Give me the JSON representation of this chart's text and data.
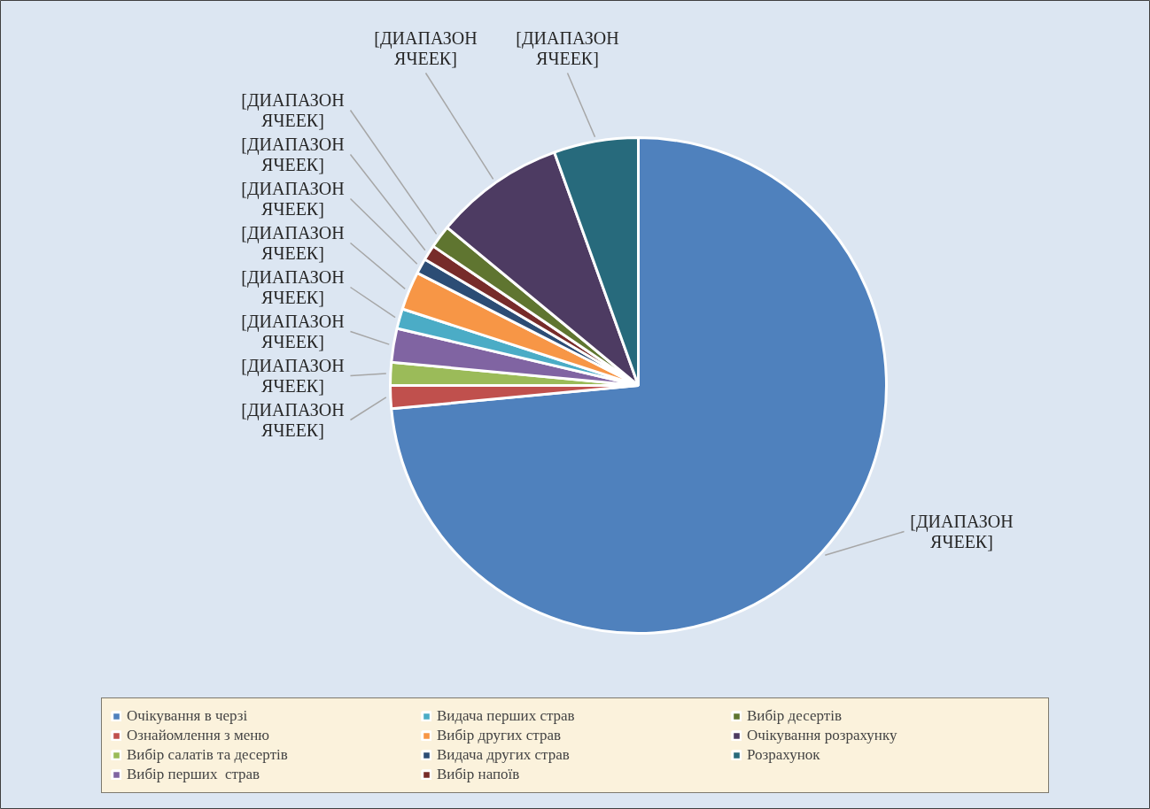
{
  "chart_data": {
    "type": "pie",
    "categories": [
      "Очікування в черзі",
      "Ознайомлення з меню",
      "Вибір салатів та десертів",
      "Вибір перших  страв",
      "Видача перших страв",
      "Вибір других страв",
      "Видача других страв",
      "Вибір напоїв",
      "Вибір десертів",
      "Очікування розрахунку",
      "Розрахунок"
    ],
    "values": [
      73.5,
      1.5,
      1.5,
      2.2,
      1.3,
      2.5,
      1,
      1,
      1.5,
      8.5,
      5.5
    ],
    "colors": [
      "#4f81bd",
      "#c0504d",
      "#9bbb59",
      "#8064a2",
      "#4bacc6",
      "#f79646",
      "#2c4d75",
      "#772c2a",
      "#5f7530",
      "#4d3b62",
      "#276a7c"
    ],
    "value_labels": [
      "[ДИАПАЗОН ЯЧЕЕК]",
      "[ДИАПАЗОН ЯЧЕЕК]",
      "[ДИАПАЗОН ЯЧЕЕК]",
      "[ДИАПАЗОН ЯЧЕЕК]",
      "[ДИАПАЗОН ЯЧЕЕК]",
      "[ДИАПАЗОН ЯЧЕЕК]",
      "[ДИАПАЗОН ЯЧЕЕК]",
      "[ДИАПАЗОН ЯЧЕЕК]",
      "[ДИАПАЗОН ЯЧЕЕК]",
      "[ДИАПАЗОН ЯЧЕЕК]",
      "[ДИАПАЗОН ЯЧЕЕК]"
    ],
    "legend": "bottom"
  }
}
